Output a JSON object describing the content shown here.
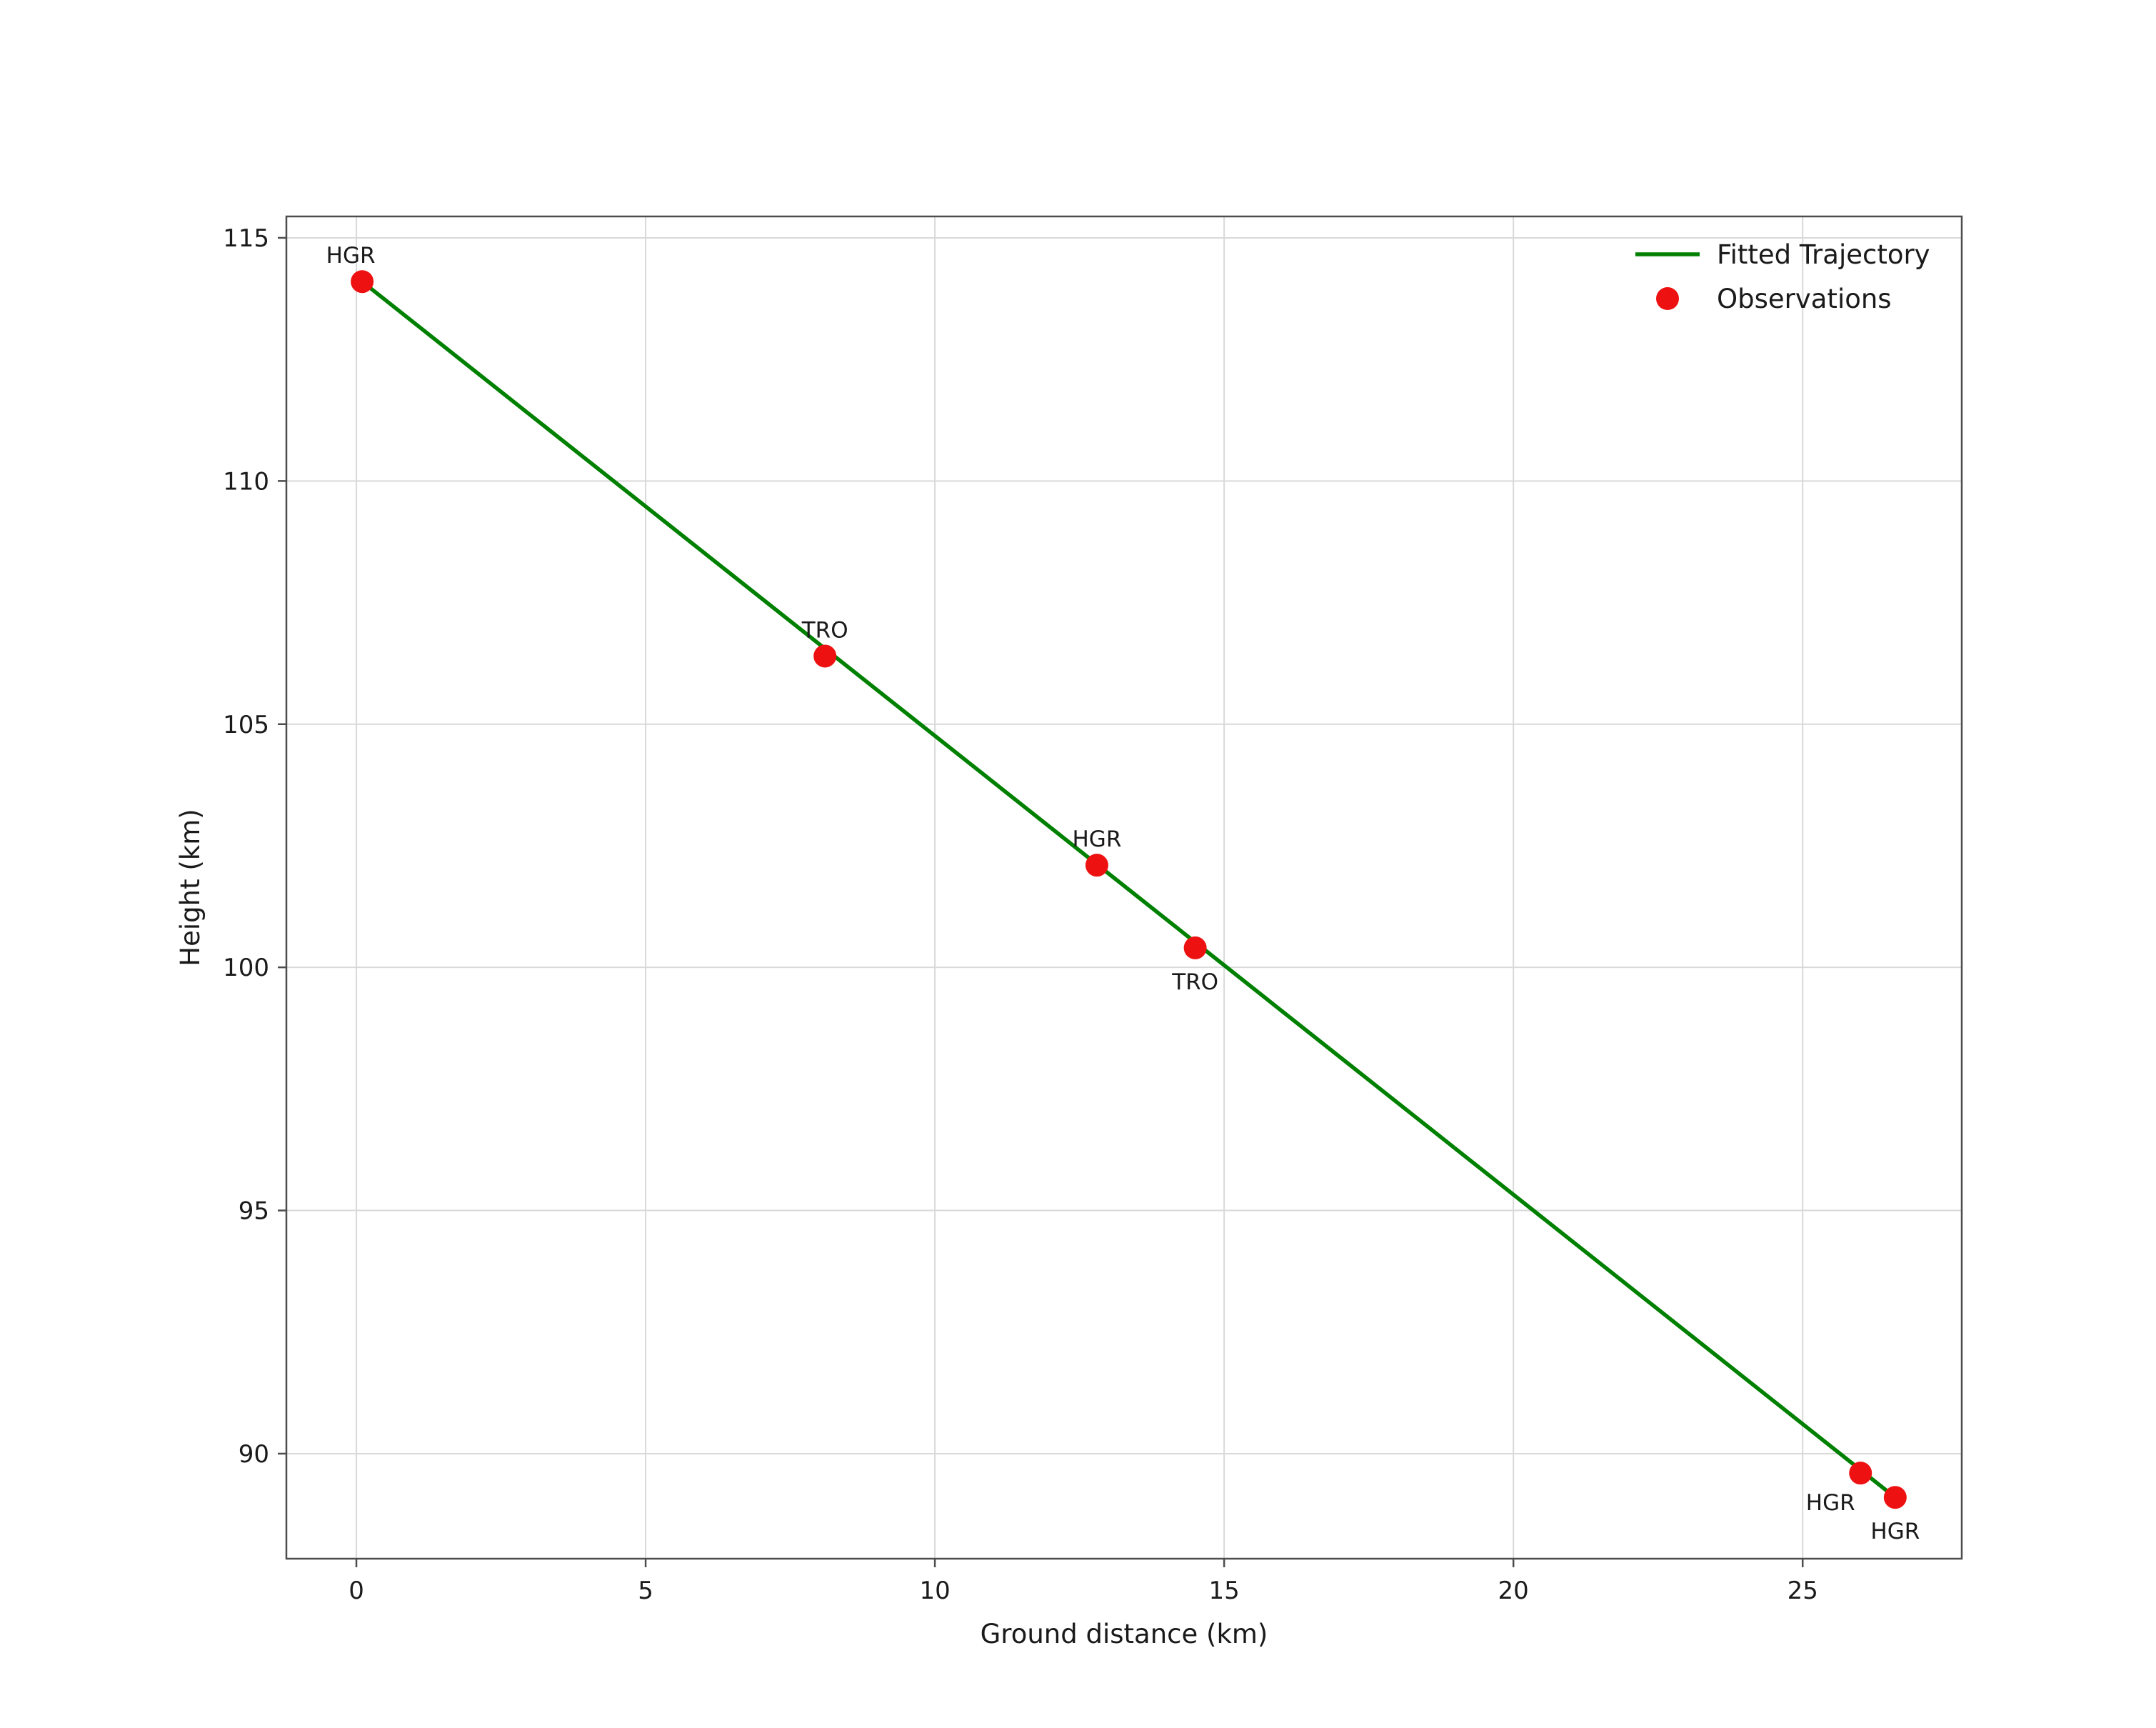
{
  "chart_data": {
    "type": "scatter",
    "title": "",
    "xlabel": "Ground distance (km)",
    "ylabel": "Height (km)",
    "xlim": [
      -1.21,
      27.75
    ],
    "ylim": [
      87.84,
      115.44
    ],
    "xticks": [
      0,
      5,
      10,
      15,
      20,
      25
    ],
    "yticks": [
      90,
      95,
      100,
      105,
      110,
      115
    ],
    "grid": true,
    "colors": {
      "grid": "#d9d9d9",
      "frame": "#4d4d4d",
      "text": "#1a1a1a",
      "line": "#008000",
      "marker": "#ee1111"
    },
    "legend": {
      "position": "upper right",
      "entries": [
        {
          "label": "Fitted Trajectory",
          "type": "line",
          "color": "#008000"
        },
        {
          "label": "Observations",
          "type": "marker",
          "color": "#ee1111"
        }
      ]
    },
    "line_series": {
      "name": "Fitted Trajectory",
      "color": "#008000",
      "points": [
        [
          0.1,
          114.1
        ],
        [
          26.6,
          89.1
        ]
      ]
    },
    "scatter_series": {
      "name": "Observations",
      "color": "#ee1111",
      "points": [
        {
          "x": 0.1,
          "y": 114.1,
          "label": "HGR",
          "label_pos": "above-left"
        },
        {
          "x": 8.1,
          "y": 106.4,
          "label": "TRO",
          "label_pos": "above"
        },
        {
          "x": 12.8,
          "y": 102.1,
          "label": "HGR",
          "label_pos": "above"
        },
        {
          "x": 14.5,
          "y": 100.4,
          "label": "TRO",
          "label_pos": "below"
        },
        {
          "x": 26.0,
          "y": 89.6,
          "label": "HGR",
          "label_pos": "below-left"
        },
        {
          "x": 26.6,
          "y": 89.1,
          "label": "HGR",
          "label_pos": "below"
        }
      ]
    }
  }
}
